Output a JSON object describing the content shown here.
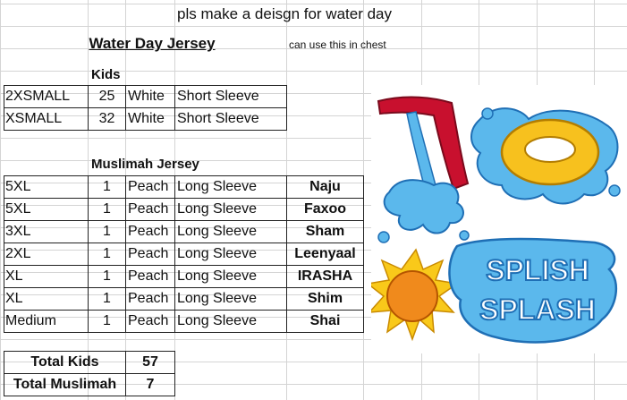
{
  "note": "pls make a deisgn for water day",
  "title": "Water Day Jersey",
  "chest_note": "can use this in chest",
  "kids": {
    "header": "Kids",
    "rows": [
      {
        "size": "2XSMALL",
        "qty": "25",
        "color": "White",
        "sleeve": "Short Sleeve"
      },
      {
        "size": "XSMALL",
        "qty": "32",
        "color": "White",
        "sleeve": "Short Sleeve"
      }
    ]
  },
  "muslimah": {
    "header": "Muslimah Jersey",
    "rows": [
      {
        "size": "5XL",
        "qty": "1",
        "color": "Peach",
        "sleeve": "Long Sleeve",
        "name": "Naju"
      },
      {
        "size": "5XL",
        "qty": "1",
        "color": "Peach",
        "sleeve": "Long Sleeve",
        "name": "Faxoo"
      },
      {
        "size": "3XL",
        "qty": "1",
        "color": "Peach",
        "sleeve": "Long Sleeve",
        "name": "Sham"
      },
      {
        "size": "2XL",
        "qty": "1",
        "color": "Peach",
        "sleeve": "Long Sleeve",
        "name": "Leenyaal"
      },
      {
        "size": "XL",
        "qty": "1",
        "color": "Peach",
        "sleeve": "Long Sleeve",
        "name": "IRASHA"
      },
      {
        "size": "XL",
        "qty": "1",
        "color": "Peach",
        "sleeve": "Long Sleeve",
        "name": "Shim"
      },
      {
        "size": "Medium",
        "qty": "1",
        "color": "Peach",
        "sleeve": "Long Sleeve",
        "name": "Shai"
      }
    ]
  },
  "totals": {
    "kids_label": "Total Kids",
    "kids_value": "57",
    "muslimah_label": "Total Muslimah",
    "muslimah_value": "7"
  },
  "artwork": {
    "splash_word_1": "SPLISH",
    "splash_word_2": "SPLASH",
    "colors": {
      "water": "#5bb8ec",
      "water_dark": "#1f6fb5",
      "slide_red": "#c8102e",
      "ring_yellow": "#f7c11e",
      "sun_orange": "#f08a1c",
      "sun_ray": "#f9c91a"
    }
  }
}
